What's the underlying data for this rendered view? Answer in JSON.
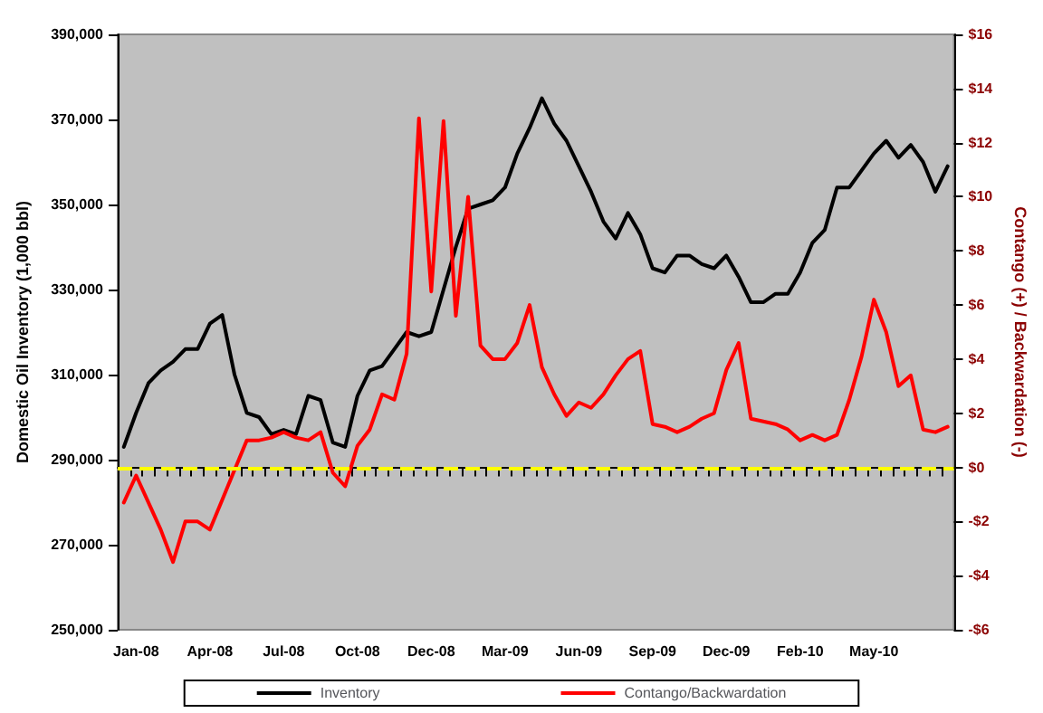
{
  "chart_data": {
    "type": "line",
    "ylabel": "Domestic Oil Inventory (1,000 bbl)",
    "y2label": "Contango (+) / Backwardation (-)",
    "categories": [
      null,
      "Jan-08",
      null,
      null,
      null,
      null,
      null,
      "Apr-08",
      null,
      null,
      null,
      null,
      null,
      "Jul-08",
      null,
      null,
      null,
      null,
      null,
      "Oct-08",
      null,
      null,
      null,
      null,
      null,
      "Dec-08",
      null,
      null,
      null,
      null,
      null,
      "Mar-09",
      null,
      null,
      null,
      null,
      null,
      "Jun-09",
      null,
      null,
      null,
      null,
      null,
      "Sep-09",
      null,
      null,
      null,
      null,
      null,
      "Dec-09",
      null,
      null,
      null,
      null,
      null,
      "Feb-10",
      null,
      null,
      null,
      null,
      null,
      "May-10",
      null,
      null,
      null,
      null,
      null,
      null
    ],
    "series": [
      {
        "name": "Inventory",
        "color": "#000000",
        "values": [
          293000,
          301000,
          308000,
          311000,
          313000,
          316000,
          316000,
          322000,
          324000,
          310000,
          301000,
          300000,
          296000,
          297000,
          296000,
          305000,
          304000,
          294000,
          293000,
          305000,
          311000,
          312000,
          316000,
          320000,
          319000,
          320000,
          330000,
          340000,
          349000,
          350000,
          351000,
          354000,
          362000,
          368000,
          375000,
          369000,
          365000,
          359000,
          353000,
          346000,
          342000,
          348000,
          343000,
          335000,
          334000,
          338000,
          338000,
          336000,
          335000,
          338000,
          333000,
          327000,
          327000,
          329000,
          329000,
          334000,
          341000,
          344000,
          354000,
          354000,
          358000,
          362000,
          365000,
          361000,
          364000,
          360000,
          353000,
          359000
        ]
      },
      {
        "name": "Contango/Backwardation",
        "color": "#ff0000",
        "axis": "y2",
        "values": [
          -1.3,
          -0.3,
          -1.3,
          -2.3,
          -3.5,
          -2.0,
          -2.0,
          -2.3,
          -1.2,
          -0.1,
          1.0,
          1.0,
          1.1,
          1.3,
          1.1,
          1.0,
          1.3,
          -0.2,
          -0.7,
          0.8,
          1.4,
          2.7,
          2.5,
          4.2,
          12.9,
          6.5,
          12.8,
          5.6,
          10.0,
          4.5,
          4.0,
          4.0,
          4.6,
          6.0,
          3.7,
          2.7,
          1.9,
          2.4,
          2.2,
          2.7,
          3.4,
          4.0,
          4.3,
          1.6,
          1.5,
          1.3,
          1.5,
          1.8,
          2.0,
          3.6,
          4.6,
          1.8,
          1.7,
          1.6,
          1.4,
          1.0,
          1.2,
          1.0,
          1.2,
          2.5,
          4.1,
          6.2,
          5.0,
          3.0,
          3.4,
          1.4,
          1.3,
          1.5
        ]
      }
    ],
    "ylim": [
      250000,
      390000
    ],
    "yticks": [
      {
        "value": 250000,
        "label": "250,000"
      },
      {
        "value": 270000,
        "label": "270,000"
      },
      {
        "value": 290000,
        "label": "290,000"
      },
      {
        "value": 310000,
        "label": "310,000"
      },
      {
        "value": 330000,
        "label": "330,000"
      },
      {
        "value": 350000,
        "label": "350,000"
      },
      {
        "value": 370000,
        "label": "370,000"
      },
      {
        "value": 390000,
        "label": "390,000"
      }
    ],
    "y2lim": [
      -6,
      16
    ],
    "y2ticks": [
      {
        "value": -6,
        "label": "-$6"
      },
      {
        "value": -4,
        "label": "-$4"
      },
      {
        "value": -2,
        "label": "-$2"
      },
      {
        "value": 0,
        "label": "$0"
      },
      {
        "value": 2,
        "label": "$2"
      },
      {
        "value": 4,
        "label": "$4"
      },
      {
        "value": 6,
        "label": "$6"
      },
      {
        "value": 8,
        "label": "$8"
      },
      {
        "value": 10,
        "label": "$10"
      },
      {
        "value": 12,
        "label": "$12"
      },
      {
        "value": 14,
        "label": "$14"
      },
      {
        "value": 16,
        "label": "$16"
      }
    ],
    "ref_lines": [
      {
        "axis": "y2",
        "value": 0,
        "color": "#ffff00",
        "line_style": "dashed"
      }
    ],
    "legend": "bottom",
    "grid": false,
    "marker": "none",
    "line_style": "solid"
  }
}
